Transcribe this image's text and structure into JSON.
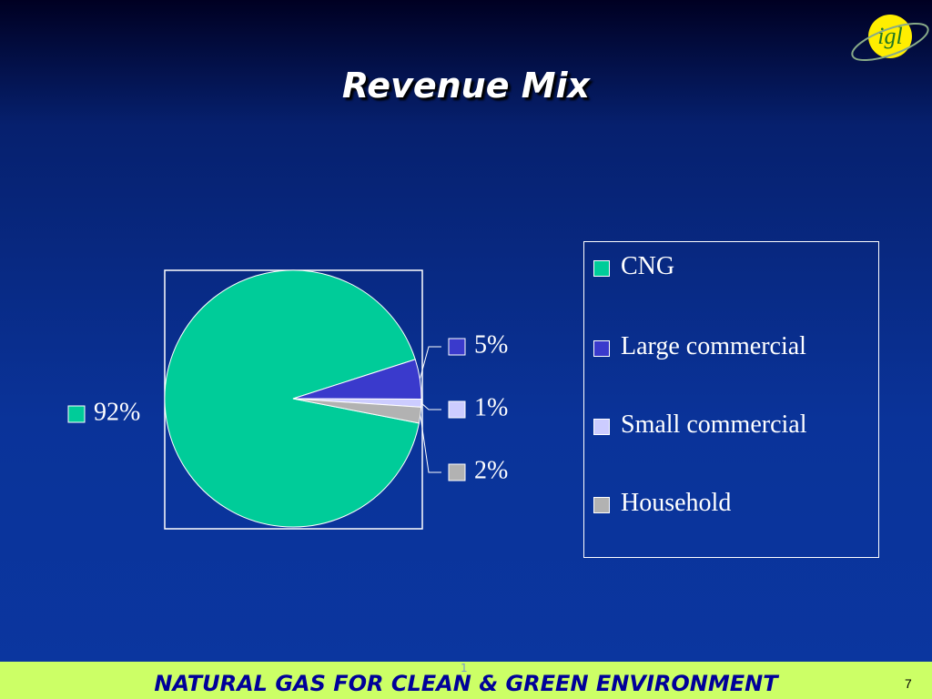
{
  "chart_data": {
    "type": "pie",
    "title": "Revenue Mix",
    "categories": [
      "CNG",
      "Large commercial",
      "Small commercial",
      "Household"
    ],
    "values": [
      92,
      5,
      1,
      2
    ],
    "value_labels": [
      "92%",
      "5%",
      "1%",
      "2%"
    ],
    "colors": [
      "#00cc99",
      "#3a3acc",
      "#ccccff",
      "#b2b2b2"
    ],
    "legend": "right"
  },
  "logo": "igl",
  "footer": {
    "text": "NATURAL GAS FOR CLEAN & GREEN ENVIRONMENT",
    "marker": "1",
    "page_number": "7"
  }
}
